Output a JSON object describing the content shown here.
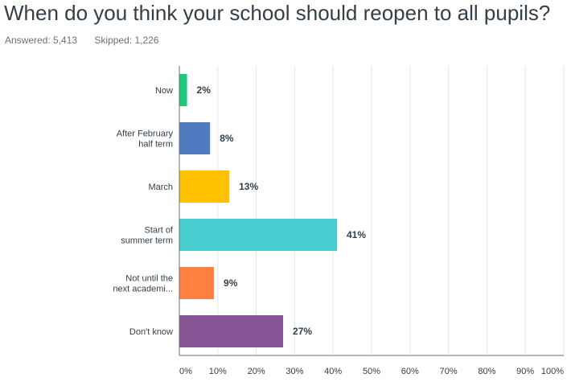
{
  "question": {
    "title": "When do you think your school should reopen to all pupils?",
    "answered_label": "Answered: 5,413",
    "skipped_label": "Skipped: 1,226"
  },
  "chart_data": {
    "type": "bar",
    "orientation": "horizontal",
    "categories": [
      [
        "Now"
      ],
      [
        "After February",
        "half term"
      ],
      [
        "March"
      ],
      [
        "Start of",
        "summer term"
      ],
      [
        "Not until the",
        "next academi..."
      ],
      [
        "Don't know"
      ]
    ],
    "values": [
      2,
      8,
      13,
      41,
      9,
      27
    ],
    "value_labels": [
      "2%",
      "8%",
      "13%",
      "41%",
      "9%",
      "27%"
    ],
    "colors": [
      "#1dc97a",
      "#4f7bc0",
      "#ffc000",
      "#48cdd1",
      "#ff8040",
      "#875595"
    ],
    "xlim": [
      0,
      100
    ],
    "ticks": [
      "0%",
      "10%",
      "20%",
      "30%",
      "40%",
      "50%",
      "60%",
      "70%",
      "80%",
      "90%",
      "100%"
    ],
    "grid": true,
    "gridline_color": "#e6e6e6",
    "axis_color": "#6b7177"
  }
}
